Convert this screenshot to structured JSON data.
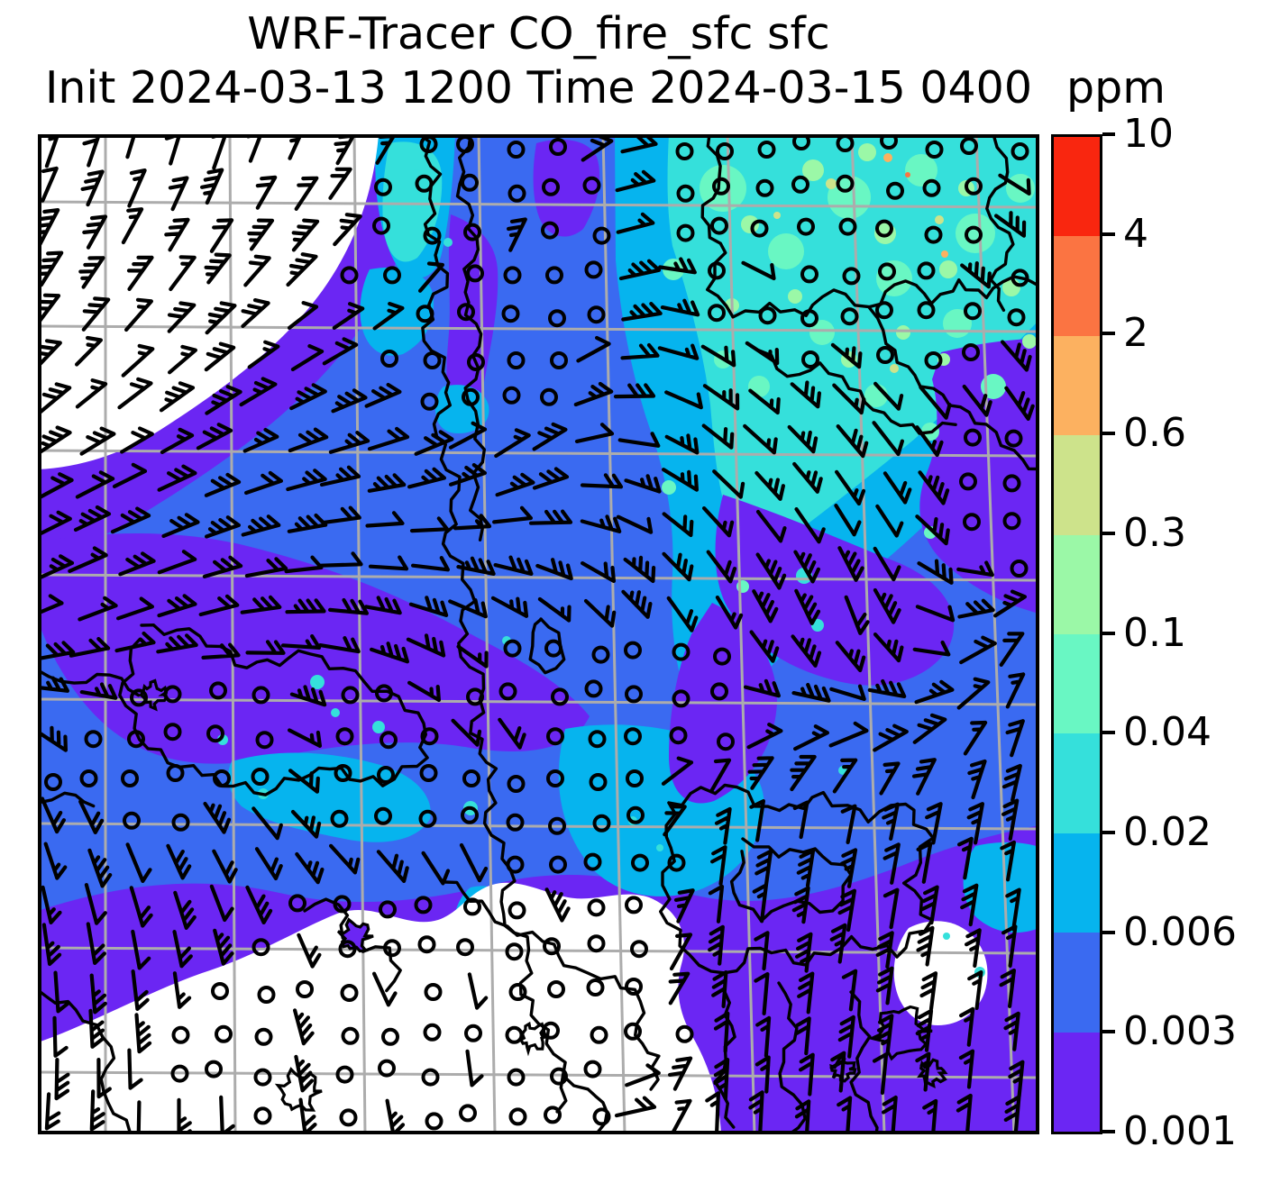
{
  "title": {
    "line1": "WRF-Tracer CO_fire_sfc sfc",
    "line2": "Init 2024-03-13 1200 Time 2024-03-15 0400"
  },
  "colorbar": {
    "unit_label": "ppm",
    "tick_labels_top_to_bottom": [
      "10",
      "4",
      "2",
      "0.6",
      "0.3",
      "0.1",
      "0.04",
      "0.02",
      "0.006",
      "0.003",
      "0.001"
    ],
    "band_colors_bottom_to_top": [
      "#6B26F3",
      "#3A6AF1",
      "#06B4EE",
      "#35E0DB",
      "#69F7C3",
      "#9BF8A7",
      "#CDE38B",
      "#FCB160",
      "#FB7442",
      "#F9260F"
    ]
  },
  "colors": {
    "white": "#ffffff",
    "violet": "#6B26F3",
    "blue": "#3A6AF1",
    "skyblue": "#06B4EE",
    "turquoise": "#35E0DB",
    "aquamarine": "#69F7C3",
    "palegreen": "#9BF8A7",
    "khaki": "#CDE38B",
    "sandy": "#FCB160",
    "coral": "#FB7442",
    "red": "#F9260F",
    "grid": "#ACACAC",
    "coast": "#000000",
    "barb": "#000000",
    "frame": "#000000"
  },
  "chart_data": {
    "type": "heatmap",
    "title": "WRF-Tracer CO_fire_sfc sfc",
    "subtitle": "Init 2024-03-13 1200 Time 2024-03-15 0400",
    "variable": "CO_fire_sfc",
    "level": "sfc",
    "units": "ppm",
    "init_time": "2024-03-13 1200",
    "valid_time": "2024-03-15 0400",
    "colorbar_levels": [
      0.001,
      0.003,
      0.006,
      0.02,
      0.04,
      0.1,
      0.3,
      0.6,
      2,
      4,
      10
    ],
    "colorbar_colors_bottom_to_top": [
      "#6B26F3",
      "#3A6AF1",
      "#06B4EE",
      "#35E0DB",
      "#69F7C3",
      "#9BF8A7",
      "#CDE38B",
      "#FCB160",
      "#FB7442",
      "#F9260F"
    ],
    "colorbar_position": "right",
    "graticule": true,
    "overlays": [
      "wind-barbs",
      "calm-wind-circles",
      "coastlines",
      "graticule"
    ],
    "field_summary": [
      {
        "region": "northwest corner",
        "value_range_ppm": "< 0.001",
        "shade": "white"
      },
      {
        "region": "north-center and northeast",
        "value_range_ppm": "0.006 - 0.1 with specks up to 2-4",
        "shade": "cyan/turquoise/green with tiny orange dots"
      },
      {
        "region": "west and center belt",
        "value_range_ppm": "0.003 - 0.006",
        "shade": "blue"
      },
      {
        "region": "south and southeast",
        "value_range_ppm": "0.001 - 0.003",
        "shade": "violet"
      },
      {
        "region": "south-central lowland",
        "value_range_ppm": "< 0.001",
        "shade": "white with calm-wind circles"
      }
    ]
  }
}
